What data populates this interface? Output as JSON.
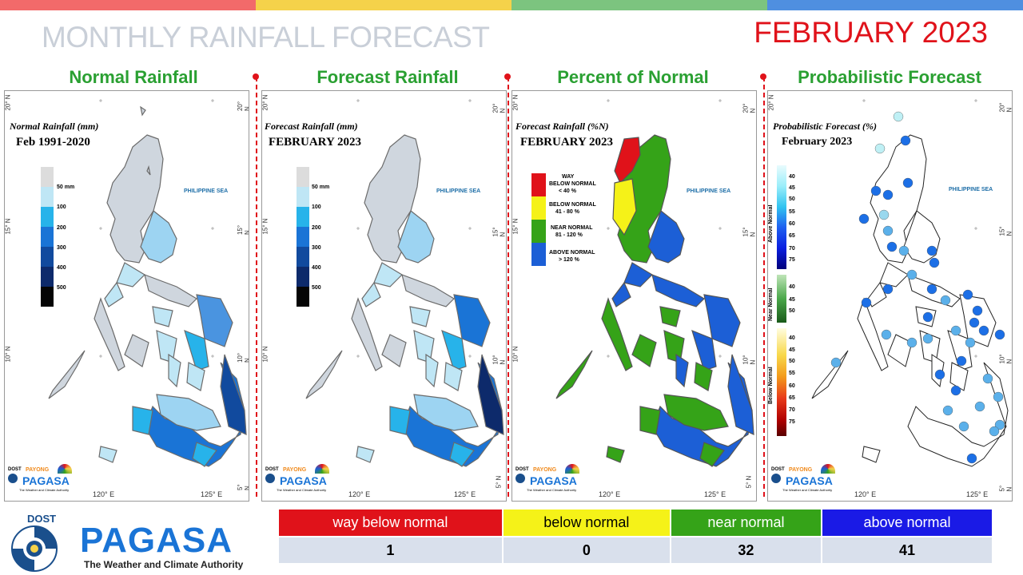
{
  "header": {
    "title": "MONTHLY RAINFALL FORECAST",
    "month": "FEBRUARY 2023",
    "band_colors": [
      "#f26a6a",
      "#f5d24a",
      "#7cc47f",
      "#4f8fe0"
    ]
  },
  "panels": [
    {
      "title": "Normal Rainfall",
      "subtitle": "Normal Rainfall (mm)",
      "period": "Feb 1991-2020"
    },
    {
      "title": "Forecast Rainfall",
      "subtitle": "Forecast Rainfall (mm)",
      "period": "FEBRUARY 2023"
    },
    {
      "title": "Percent of Normal",
      "subtitle": "Forecast Rainfall (%N)",
      "period": "FEBRUARY 2023"
    },
    {
      "title": "Probabilistic Forecast",
      "subtitle": "Probabilistic Forecast (%)",
      "period": "February 2023"
    }
  ],
  "map_labels": {
    "sea": "PHILIPPINE SEA",
    "lat": [
      "20° N",
      "15° N",
      "10° N",
      "5° N"
    ],
    "lon": [
      "120° E",
      "125° E"
    ]
  },
  "rain_legend": {
    "labels": [
      "50 mm",
      "100",
      "200",
      "300",
      "400",
      "500"
    ],
    "colors": [
      "#dcdcdc",
      "#bfe6f5",
      "#27b3ea",
      "#1a74d6",
      "#114a9e",
      "#0d2a6b",
      "#050505"
    ]
  },
  "pct_legend": [
    {
      "label1": "WAY",
      "label2": "BELOW NORMAL",
      "label3": "< 40 %",
      "color": "#e0121a"
    },
    {
      "label1": "BELOW NORMAL",
      "label2": "41 - 80 %",
      "label3": "",
      "color": "#f5f218"
    },
    {
      "label1": "NEAR NORMAL",
      "label2": "81 - 120 %",
      "label3": "",
      "color": "#35a318"
    },
    {
      "label1": "ABOVE NORMAL",
      "label2": "> 120 %",
      "label3": "",
      "color": "#1c5fd6"
    }
  ],
  "prob_legend": {
    "above": {
      "title": "Above Normal",
      "labels": [
        "40",
        "45",
        "50",
        "55",
        "60",
        "65",
        "70",
        "75"
      ]
    },
    "near": {
      "title": "Near Normal",
      "labels": [
        "40",
        "45",
        "50"
      ]
    },
    "below": {
      "title": "Below Normal",
      "labels": [
        "40",
        "45",
        "50",
        "55",
        "60",
        "65",
        "70",
        "75"
      ]
    }
  },
  "mini_logo": {
    "dost": "DOST",
    "payong": "PAYONG",
    "name": "PAGASA",
    "tagline": "The Weather and Climate Authority"
  },
  "summary": {
    "categories": [
      {
        "label": "way below normal",
        "value": "1",
        "color": "#e0121a",
        "text_color": "#ffffff"
      },
      {
        "label": "below normal",
        "value": "0",
        "color": "#f5f218",
        "text_color": "#000000"
      },
      {
        "label": "near normal",
        "value": "32",
        "color": "#35a318",
        "text_color": "#ffffff"
      },
      {
        "label": "above normal",
        "value": "41",
        "color": "#1a1ae6",
        "text_color": "#ffffff"
      }
    ]
  },
  "logo": {
    "dost": "DOST",
    "name": "PAGASA",
    "tagline": "The Weather and Climate Authority"
  }
}
